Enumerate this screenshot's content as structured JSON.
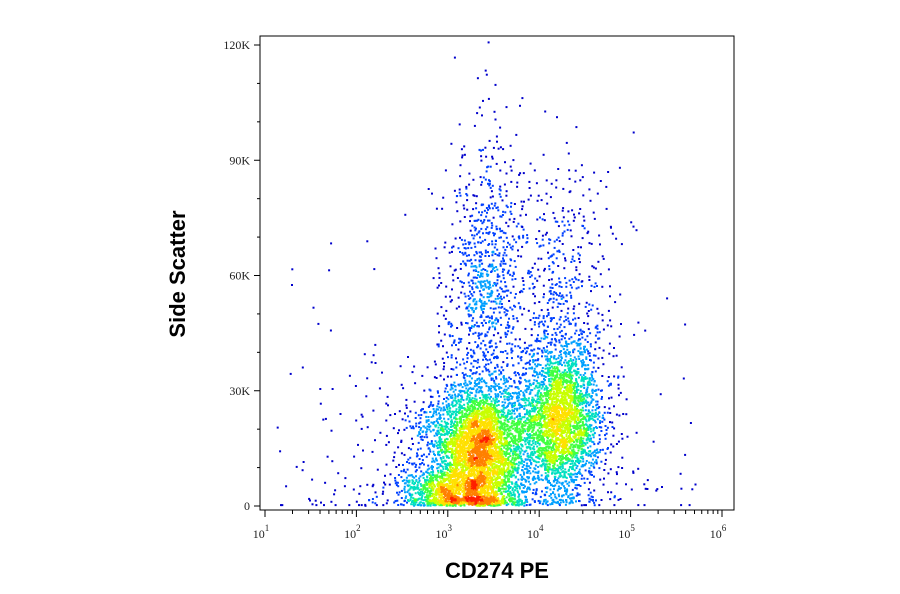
{
  "chart_data": {
    "type": "scatter",
    "subtype": "flow-cytometry-density-dot-plot",
    "xlabel": "CD274 PE",
    "ylabel": "Side Scatter",
    "x_scale": "log",
    "y_scale": "linear",
    "xlim": [
      10,
      1000000
    ],
    "ylim": [
      0,
      122000
    ],
    "x_ticks": [
      {
        "value": 10,
        "base": "10",
        "exp": "1"
      },
      {
        "value": 100,
        "base": "10",
        "exp": "2"
      },
      {
        "value": 1000,
        "base": "10",
        "exp": "3"
      },
      {
        "value": 10000,
        "base": "10",
        "exp": "4"
      },
      {
        "value": 100000,
        "base": "10",
        "exp": "5"
      },
      {
        "value": 1000000,
        "base": "10",
        "exp": "6"
      }
    ],
    "y_ticks": [
      {
        "value": 0,
        "label": "0"
      },
      {
        "value": 30000,
        "label": "30K"
      },
      {
        "value": 60000,
        "label": "60K"
      },
      {
        "value": 90000,
        "label": "90K"
      },
      {
        "value": 120000,
        "label": "120K"
      }
    ],
    "grid": false,
    "legend": "none",
    "density_colormap": [
      "#0000cc",
      "#0040ff",
      "#00a0ff",
      "#00e0c0",
      "#40ff40",
      "#c8ff00",
      "#ffe000",
      "#ff8000",
      "#ff2000"
    ],
    "populations": [
      {
        "x_center": 2200,
        "y_center": 15000,
        "x_log_spread": 0.28,
        "y_spread": 9000,
        "weight": 0.42
      },
      {
        "x_center": 17000,
        "y_center": 23000,
        "x_log_spread": 0.22,
        "y_spread": 10000,
        "weight": 0.3
      },
      {
        "x_center": 2500,
        "y_center": 55000,
        "x_log_spread": 0.2,
        "y_spread": 20000,
        "weight": 0.1
      },
      {
        "x_center": 1100,
        "y_center": 4000,
        "x_log_spread": 0.3,
        "y_spread": 3000,
        "weight": 0.1
      },
      {
        "x_center": 15000,
        "y_center": 55000,
        "x_log_spread": 0.35,
        "y_spread": 18000,
        "weight": 0.06
      },
      {
        "x_center": 800,
        "y_center": 15000,
        "x_log_spread": 0.45,
        "y_spread": 12000,
        "weight": 0.02
      }
    ]
  }
}
